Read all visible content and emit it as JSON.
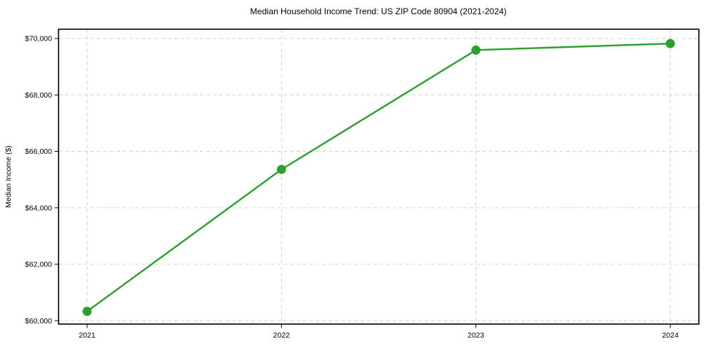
{
  "chart_data": {
    "type": "line",
    "title": "Median Household Income Trend: US ZIP Code 80904 (2021-2024)",
    "xlabel": "",
    "ylabel": "Median Income ($)",
    "categories": [
      "2021",
      "2022",
      "2023",
      "2024"
    ],
    "series": [
      {
        "name": "Median Household Income",
        "values": [
          60330,
          65360,
          69590,
          69820
        ],
        "color": "#2ca02c",
        "marker": "circle"
      }
    ],
    "x_tick_labels": [
      "2021",
      "2022",
      "2023",
      "2024"
    ],
    "y_ticks": [
      60000,
      62000,
      64000,
      66000,
      68000,
      70000
    ],
    "y_tick_labels": [
      "$60,000",
      "$62,000",
      "$64,000",
      "$66,000",
      "$68,000",
      "$70,000"
    ],
    "ylim": [
      59880,
      70330
    ],
    "grid": "both",
    "grid_style": "dashed",
    "legend": "none",
    "colors": {
      "line": "#2ca02c",
      "grid": "#d3d3d3",
      "axis": "#000000",
      "text": "#000000",
      "background": "#ffffff"
    }
  }
}
